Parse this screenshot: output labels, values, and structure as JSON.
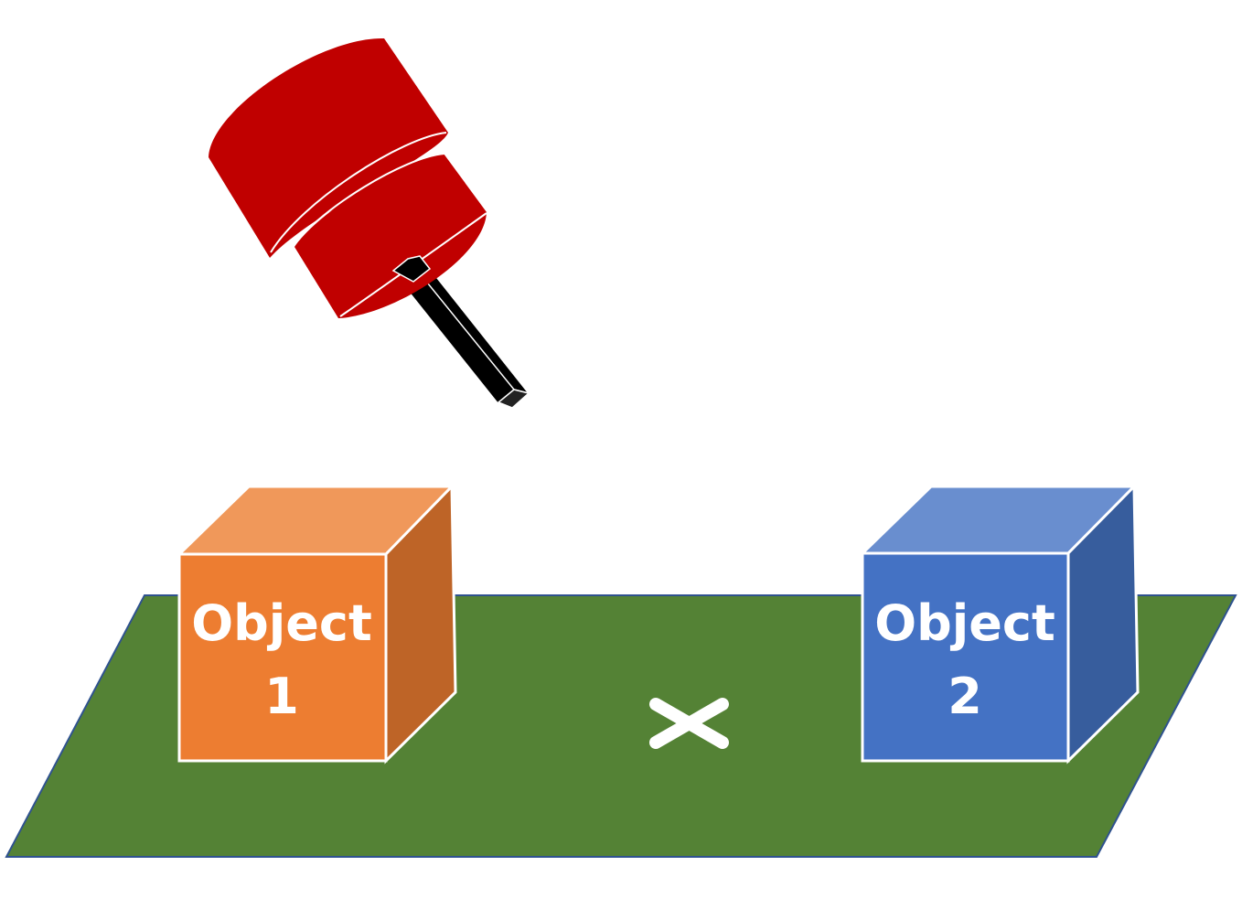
{
  "objects": [
    {
      "line1": "Object",
      "line2": "1",
      "colors": {
        "front": "#ED7D31",
        "top": "#F0985A",
        "side": "#BE6427"
      }
    },
    {
      "line1": "Object",
      "line2": "2",
      "colors": {
        "front": "#4472C4",
        "top": "#698ECF",
        "side": "#375D9D"
      }
    }
  ],
  "colors": {
    "table": "#548235",
    "table_border": "#2F528F",
    "robot_body": "#C00000",
    "pointer": "#000000",
    "target_marker": "#FFFFFF",
    "outline": "#FFFFFF"
  },
  "icons": {
    "robot": "robot-end-effector-icon",
    "target": "target-x-marker-icon"
  }
}
